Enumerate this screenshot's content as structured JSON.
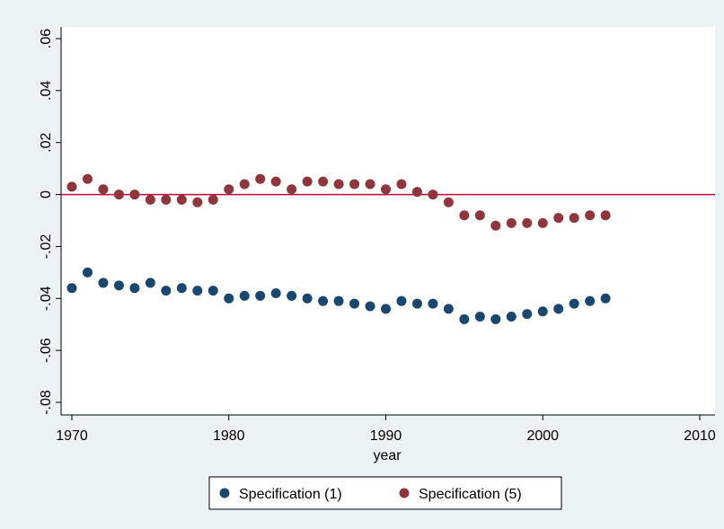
{
  "chart_data": {
    "type": "scatter",
    "x_label": "year",
    "x": [
      1970,
      1971,
      1972,
      1973,
      1974,
      1975,
      1976,
      1977,
      1978,
      1979,
      1980,
      1981,
      1982,
      1983,
      1984,
      1985,
      1986,
      1987,
      1988,
      1989,
      1990,
      1991,
      1992,
      1993,
      1994,
      1995,
      1996,
      1997,
      1998,
      1999,
      2000,
      2001,
      2002,
      2003,
      2004
    ],
    "series": [
      {
        "name": "Specification (1)",
        "color": "#1a476f",
        "values": [
          -0.036,
          -0.03,
          -0.034,
          -0.035,
          -0.036,
          -0.034,
          -0.037,
          -0.036,
          -0.037,
          -0.037,
          -0.04,
          -0.039,
          -0.039,
          -0.038,
          -0.039,
          -0.04,
          -0.041,
          -0.041,
          -0.042,
          -0.043,
          -0.044,
          -0.041,
          -0.042,
          -0.042,
          -0.044,
          -0.048,
          -0.047,
          -0.048,
          -0.047,
          -0.046,
          -0.045,
          -0.044,
          -0.042,
          -0.041,
          -0.04
        ]
      },
      {
        "name": "Specification (5)",
        "color": "#90353b",
        "values": [
          0.003,
          0.006,
          0.002,
          0,
          0,
          -0.002,
          -0.002,
          -0.002,
          -0.003,
          -0.002,
          0.002,
          0.004,
          0.006,
          0.005,
          0.002,
          0.005,
          0.005,
          0.004,
          0.004,
          0.004,
          0.002,
          0.004,
          0.001,
          0,
          -0.003,
          -0.008,
          -0.008,
          -0.012,
          -0.011,
          -0.011,
          -0.011,
          -0.009,
          -0.009,
          -0.008,
          -0.008
        ]
      }
    ],
    "xlim": [
      1970,
      2010
    ],
    "xticks": [
      1970,
      1980,
      1990,
      2000,
      2010
    ],
    "ylim": [
      -0.08,
      0.06
    ],
    "yticks": [
      {
        "value": -0.08,
        "label": "-.08"
      },
      {
        "value": -0.06,
        "label": "-.06"
      },
      {
        "value": -0.04,
        "label": "-.04"
      },
      {
        "value": -0.02,
        "label": "-.02"
      },
      0,
      {
        "value": 0.02,
        "label": ".02"
      },
      {
        "value": 0.04,
        "label": ".04"
      },
      {
        "value": 0.06,
        "label": ".06"
      }
    ],
    "yline": 0,
    "yline_color": "#c10534"
  }
}
